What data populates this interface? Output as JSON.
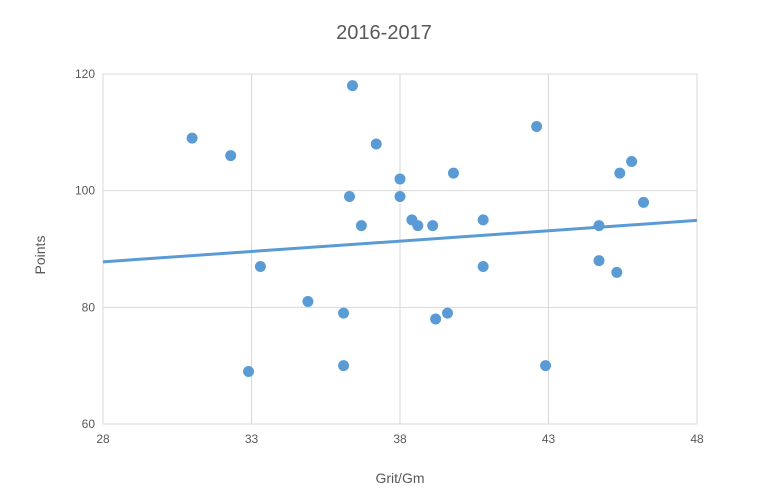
{
  "chart_data": {
    "type": "scatter",
    "title": "2016-2017",
    "xlabel": "Grit/Gm",
    "ylabel": "Points",
    "xlim": [
      28,
      48
    ],
    "ylim": [
      60,
      120
    ],
    "x_ticks": [
      "28",
      "33",
      "38",
      "43",
      "48"
    ],
    "y_ticks": [
      "60",
      "80",
      "100",
      "120"
    ],
    "grid": true,
    "series": [
      {
        "marker_color": "#5B9BD5",
        "points": [
          {
            "x": 31.0,
            "y": 109
          },
          {
            "x": 32.3,
            "y": 106
          },
          {
            "x": 33.3,
            "y": 87
          },
          {
            "x": 32.9,
            "y": 69
          },
          {
            "x": 34.9,
            "y": 81
          },
          {
            "x": 36.1,
            "y": 79
          },
          {
            "x": 36.1,
            "y": 70
          },
          {
            "x": 36.3,
            "y": 99
          },
          {
            "x": 36.4,
            "y": 118
          },
          {
            "x": 36.7,
            "y": 94
          },
          {
            "x": 37.2,
            "y": 108
          },
          {
            "x": 38.0,
            "y": 102
          },
          {
            "x": 38.0,
            "y": 99
          },
          {
            "x": 38.4,
            "y": 95
          },
          {
            "x": 38.6,
            "y": 94
          },
          {
            "x": 39.1,
            "y": 94
          },
          {
            "x": 39.2,
            "y": 78
          },
          {
            "x": 39.6,
            "y": 79
          },
          {
            "x": 39.8,
            "y": 103
          },
          {
            "x": 40.8,
            "y": 95
          },
          {
            "x": 40.8,
            "y": 87
          },
          {
            "x": 42.6,
            "y": 111
          },
          {
            "x": 42.9,
            "y": 70
          },
          {
            "x": 44.7,
            "y": 94
          },
          {
            "x": 44.7,
            "y": 88
          },
          {
            "x": 45.3,
            "y": 86
          },
          {
            "x": 45.4,
            "y": 103
          },
          {
            "x": 45.8,
            "y": 105
          },
          {
            "x": 46.2,
            "y": 98
          }
        ]
      }
    ],
    "trendline": {
      "type": "linear",
      "color": "#5B9BD5",
      "start": {
        "x": 28,
        "y": 87.8
      },
      "end": {
        "x": 48,
        "y": 94.9
      }
    }
  }
}
